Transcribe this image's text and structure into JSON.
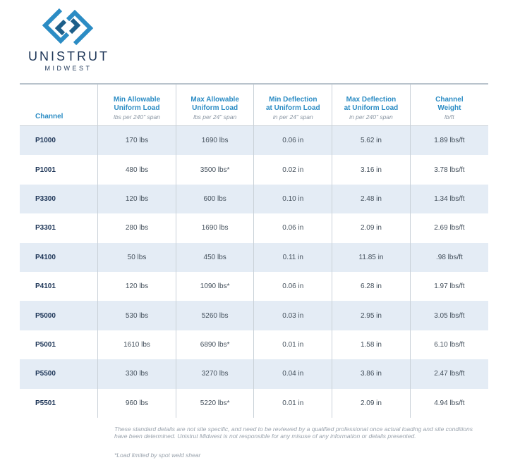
{
  "header": {
    "brand": "UNISTRUT",
    "subbrand": "MIDWEST"
  },
  "table": {
    "columns": [
      {
        "title": [
          "Channel"
        ]
      },
      {
        "title": [
          "Min Allowable",
          "Uniform Load"
        ],
        "unit": "lbs per 240\" span"
      },
      {
        "title": [
          "Max Allowable",
          "Uniform Load"
        ],
        "unit": "lbs per 24\" span"
      },
      {
        "title": [
          "Min Deflection",
          "at Uniform Load"
        ],
        "unit": "in per 24\" span"
      },
      {
        "title": [
          "Max Deflection",
          "at Uniform Load"
        ],
        "unit": "in per 240\" span"
      },
      {
        "title": [
          "Channel",
          "Weight"
        ],
        "unit": "lb/ft"
      }
    ],
    "rows": [
      [
        "P1000",
        "170 lbs",
        "1690 lbs",
        "0.06 in",
        "5.62 in",
        "1.89 lbs/ft"
      ],
      [
        "P1001",
        "480 lbs",
        "3500 lbs*",
        "0.02 in",
        "3.16 in",
        "3.78 lbs/ft"
      ],
      [
        "P3300",
        "120 lbs",
        "600 lbs",
        "0.10 in",
        "2.48 in",
        "1.34 lbs/ft"
      ],
      [
        "P3301",
        "280 lbs",
        "1690 lbs",
        "0.06 in",
        "2.09 in",
        "2.69 lbs/ft"
      ],
      [
        "P4100",
        "50 lbs",
        "450 lbs",
        "0.11 in",
        "11.85 in",
        ".98 lbs/ft"
      ],
      [
        "P4101",
        "120 lbs",
        "1090 lbs*",
        "0.06 in",
        "6.28 in",
        "1.97 lbs/ft"
      ],
      [
        "P5000",
        "530 lbs",
        "5260 lbs",
        "0.03 in",
        "2.95 in",
        "3.05 lbs/ft"
      ],
      [
        "P5001",
        "1610 lbs",
        "6890 lbs*",
        "0.01 in",
        "1.58 in",
        "6.10 lbs/ft"
      ],
      [
        "P5500",
        "330 lbs",
        "3270 lbs",
        "0.04 in",
        "3.86 in",
        "2.47 lbs/ft"
      ],
      [
        "P5501",
        "960 lbs",
        "5220 lbs*",
        "0.01 in",
        "2.09 in",
        "4.94 lbs/ft"
      ]
    ]
  },
  "notes": {
    "disclaimer": "These standard details are not site specific, and need to be reviewed by a qualified professional once actual loading and site conditions have been determined. Unistrut Midwest is not responsible for any misuse of any information or details presented.",
    "footnote": "*Load limited by spot weld shear"
  }
}
